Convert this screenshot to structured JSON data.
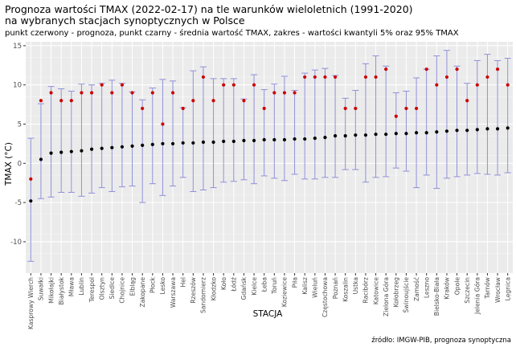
{
  "chart_data": {
    "type": "scatter",
    "title_lines": [
      "Prognoza wartości TMAX (2022-02-17) na tle warunków wieloletnich (1991-2020)",
      "na wybranych stacjach synoptycznych w Polsce"
    ],
    "subtitle": "punkt czerwony - prognoza, punkt czarny - średnia wartość TMAX, zakres - wartości kwantyli 5% oraz 95% TMAX",
    "xlabel": "STACJA",
    "ylabel": "TMAX (°C)",
    "caption": "źródło: IMGW-PIB, prognoza synoptyczna",
    "ylim": [
      -14,
      15.5
    ],
    "yticks": [
      -10,
      -5,
      0,
      5,
      10,
      15
    ],
    "grid": true,
    "colors": {
      "panel": "#ebebeb",
      "grid_major": "#ffffff",
      "forecast": "#cc0000",
      "mean": "#000000",
      "range": "#8f8fd9"
    },
    "categories": [
      "Kasprowy Wierch",
      "Suwałki",
      "Mikołajki",
      "Białystok",
      "Mława",
      "Lublin",
      "Terespol",
      "Olsztyn",
      "Siedlce",
      "Chojnice",
      "Elbląg",
      "Zakopane",
      "Płock",
      "Lesko",
      "Warszawa",
      "Hel",
      "Rzeszów",
      "Sandomierz",
      "Kłodzko",
      "Koło",
      "Łódź",
      "Gdańsk",
      "Kielce",
      "Łeba",
      "Toruń",
      "Koziewice",
      "Piła",
      "Kalisz",
      "Wieluń",
      "Częstochowa",
      "Poznań",
      "Koszalin",
      "Ustka",
      "Racibórz",
      "Katowice",
      "Zielona Góra",
      "Kołobrzeg",
      "Świnoujście",
      "Zamość",
      "Leszno",
      "Bielsko-Biała",
      "Kraków",
      "Opole",
      "Szczecin",
      "Jelenia Góra",
      "Tarnów",
      "Wrocław",
      "Legnica"
    ],
    "series": [
      {
        "name": "prognoza",
        "values": [
          -2,
          8,
          9,
          8,
          8,
          9,
          9,
          10,
          9,
          10,
          9,
          7,
          9,
          5,
          9,
          7,
          8,
          11,
          8,
          10,
          10,
          8,
          10,
          7,
          9,
          9,
          9,
          11,
          11,
          11,
          11,
          7,
          7,
          11,
          11,
          12,
          6,
          7,
          7,
          12,
          10,
          11,
          12,
          8,
          10,
          11,
          12,
          10
        ]
      },
      {
        "name": "średnia",
        "values": [
          -4.8,
          0.5,
          1.3,
          1.4,
          1.5,
          1.6,
          1.8,
          1.9,
          2,
          2.1,
          2.2,
          2.3,
          2.4,
          2.5,
          2.5,
          2.6,
          2.6,
          2.7,
          2.7,
          2.8,
          2.8,
          2.9,
          2.9,
          3,
          3,
          3,
          3.1,
          3.1,
          3.2,
          3.3,
          3.5,
          3.5,
          3.6,
          3.6,
          3.7,
          3.7,
          3.8,
          3.8,
          3.9,
          3.9,
          4,
          4.1,
          4.2,
          4.2,
          4.3,
          4.4,
          4.4,
          4.5
        ]
      },
      {
        "name": "kwantyl 5%",
        "values": [
          -12.5,
          -4.5,
          -4.3,
          -3.7,
          -3.7,
          -4.2,
          -3.8,
          -3.1,
          -3.6,
          -3.0,
          -2.9,
          -5.0,
          -2.6,
          -4.1,
          -2.9,
          -1.8,
          -3.6,
          -3.4,
          -3.1,
          -2.4,
          -2.3,
          -2.1,
          -2.6,
          -1.6,
          -1.9,
          -2.2,
          -1.4,
          -2.0,
          -2.0,
          -1.8,
          -1.8,
          -0.8,
          -0.8,
          -2.4,
          -1.8,
          -1.7,
          -0.6,
          -1.0,
          -3.1,
          -1.5,
          -3.2,
          -1.9,
          -1.7,
          -1.5,
          -1.3,
          -1.4,
          -1.5,
          -1.2
        ]
      },
      {
        "name": "kwantyl 95%",
        "values": [
          3.2,
          7.6,
          9.8,
          9.5,
          9.2,
          10.1,
          10.0,
          10.2,
          10.6,
          10.2,
          9.1,
          8.1,
          9.6,
          10.7,
          10.5,
          7.1,
          11.8,
          12.3,
          10.8,
          10.8,
          10.8,
          8.2,
          11.3,
          9.4,
          10.1,
          11.1,
          9.3,
          11.5,
          11.9,
          12.1,
          11.2,
          8.3,
          9.3,
          12.7,
          13.7,
          12.4,
          9.0,
          9.2,
          10.9,
          12.0,
          13.7,
          14.4,
          12.4,
          10.2,
          13.1,
          13.9,
          13.1,
          13.4
        ]
      }
    ]
  }
}
